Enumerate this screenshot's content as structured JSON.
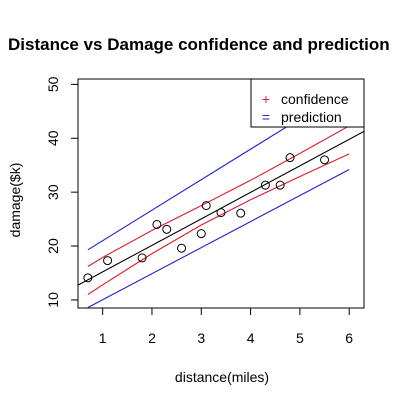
{
  "chart_data": {
    "type": "scatter",
    "title": "Distance vs Damage confidence and prediction",
    "xlabel": "distance(miles)",
    "ylabel": "damage($k)",
    "xlim": [
      0.5,
      6.3
    ],
    "ylim": [
      8.5,
      51
    ],
    "xticks": [
      1,
      2,
      3,
      4,
      5,
      6
    ],
    "yticks": [
      10,
      20,
      30,
      40,
      50
    ],
    "grid": false,
    "points": [
      {
        "x": 0.7,
        "y": 14.1
      },
      {
        "x": 1.1,
        "y": 17.3
      },
      {
        "x": 1.8,
        "y": 17.8
      },
      {
        "x": 2.1,
        "y": 24.0
      },
      {
        "x": 2.3,
        "y": 23.1
      },
      {
        "x": 2.6,
        "y": 19.6
      },
      {
        "x": 3.0,
        "y": 22.3
      },
      {
        "x": 3.1,
        "y": 27.5
      },
      {
        "x": 3.4,
        "y": 26.2
      },
      {
        "x": 3.8,
        "y": 26.1
      },
      {
        "x": 4.3,
        "y": 31.3
      },
      {
        "x": 4.6,
        "y": 31.3
      },
      {
        "x": 4.8,
        "y": 36.4
      },
      {
        "x": 5.5,
        "y": 36.0
      }
    ],
    "fit_line": {
      "intercept": 10.28,
      "slope": 4.92,
      "color": "#000000"
    },
    "bands": [
      {
        "name": "confidence",
        "color": "#df1c2c",
        "upper": {
          "x": [
            0.7,
            1.0,
            2.0,
            3.0,
            4.0,
            5.0,
            6.0
          ],
          "y": [
            16.2,
            17.9,
            22.9,
            27.5,
            32.2,
            37.2,
            42.3
          ]
        },
        "lower": {
          "x": [
            0.7,
            1.0,
            2.0,
            3.0,
            4.0,
            5.0,
            6.0
          ],
          "y": [
            11.0,
            12.8,
            18.6,
            23.9,
            28.6,
            32.9,
            37.1
          ]
        }
      },
      {
        "name": "prediction",
        "color": "#2020cf",
        "upper": {
          "x": [
            0.7,
            6.0
          ],
          "y": [
            19.3,
            49.3
          ]
        },
        "lower": {
          "x": [
            0.7,
            6.0
          ],
          "y": [
            8.6,
            34.2
          ]
        }
      }
    ],
    "legend": {
      "position": "top-right",
      "entries": [
        {
          "symbol": "+",
          "label": "confidence",
          "color": "#df1c2c"
        },
        {
          "symbol": "=",
          "label": "prediction",
          "color": "#2020cf"
        }
      ]
    }
  }
}
